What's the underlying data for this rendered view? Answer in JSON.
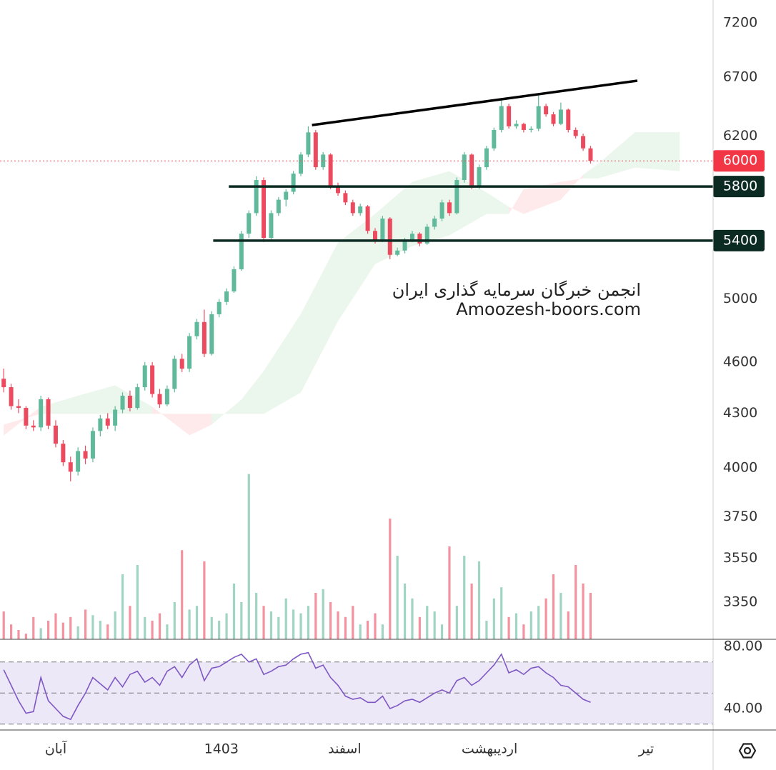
{
  "chart_data": {
    "type": "candlestick",
    "ylim": [
      3190,
      7420
    ],
    "log_scale": true,
    "yticks": [
      3350,
      3550,
      3750,
      4000,
      4300,
      4600,
      5000,
      6200,
      6700,
      7200
    ],
    "xlim": [
      -0.5,
      95.5
    ],
    "xticks": [
      {
        "value": 7,
        "label": "آبان"
      },
      {
        "value": 29.3,
        "label": "1403"
      },
      {
        "value": 45.9,
        "label": "اسفند"
      },
      {
        "value": 65.4,
        "label": "اردیبهشت"
      },
      {
        "value": 86.5,
        "label": "تیر"
      }
    ],
    "up_color": "#5fb99a",
    "down_color": "#ec4b5f",
    "ohlc": [
      [
        4500,
        4560,
        4420,
        4450
      ],
      [
        4450,
        4470,
        4320,
        4340
      ],
      [
        4340,
        4380,
        4300,
        4330
      ],
      [
        4330,
        4340,
        4210,
        4230
      ],
      [
        4230,
        4260,
        4200,
        4220
      ],
      [
        4220,
        4400,
        4200,
        4380
      ],
      [
        4380,
        4390,
        4210,
        4230
      ],
      [
        4230,
        4260,
        4110,
        4130
      ],
      [
        4130,
        4150,
        4010,
        4030
      ],
      [
        4030,
        4060,
        3930,
        3980
      ],
      [
        3980,
        4110,
        3960,
        4090
      ],
      [
        4090,
        4120,
        4020,
        4050
      ],
      [
        4050,
        4220,
        4030,
        4200
      ],
      [
        4200,
        4290,
        4170,
        4270
      ],
      [
        4270,
        4300,
        4210,
        4230
      ],
      [
        4230,
        4340,
        4200,
        4320
      ],
      [
        4320,
        4420,
        4300,
        4400
      ],
      [
        4400,
        4430,
        4310,
        4330
      ],
      [
        4330,
        4470,
        4320,
        4450
      ],
      [
        4450,
        4600,
        4430,
        4580
      ],
      [
        4580,
        4600,
        4390,
        4410
      ],
      [
        4410,
        4440,
        4330,
        4350
      ],
      [
        4350,
        4460,
        4340,
        4440
      ],
      [
        4440,
        4640,
        4420,
        4620
      ],
      [
        4620,
        4650,
        4540,
        4560
      ],
      [
        4560,
        4780,
        4540,
        4760
      ],
      [
        4760,
        4870,
        4740,
        4850
      ],
      [
        4850,
        4930,
        4630,
        4650
      ],
      [
        4650,
        4920,
        4640,
        4900
      ],
      [
        4900,
        5000,
        4880,
        4980
      ],
      [
        4980,
        5070,
        4960,
        5050
      ],
      [
        5050,
        5220,
        5040,
        5200
      ],
      [
        5200,
        5470,
        5190,
        5450
      ],
      [
        5450,
        5620,
        5420,
        5600
      ],
      [
        5600,
        5880,
        5580,
        5850
      ],
      [
        5850,
        5870,
        5390,
        5420
      ],
      [
        5420,
        5620,
        5400,
        5600
      ],
      [
        5600,
        5720,
        5580,
        5700
      ],
      [
        5700,
        5780,
        5650,
        5760
      ],
      [
        5760,
        5920,
        5740,
        5900
      ],
      [
        5900,
        6070,
        5880,
        6050
      ],
      [
        6050,
        6280,
        6030,
        6230
      ],
      [
        6230,
        6250,
        5930,
        5950
      ],
      [
        5950,
        6070,
        5930,
        6050
      ],
      [
        6050,
        6060,
        5780,
        5800
      ],
      [
        5800,
        5830,
        5730,
        5750
      ],
      [
        5750,
        5770,
        5660,
        5680
      ],
      [
        5680,
        5700,
        5580,
        5600
      ],
      [
        5600,
        5670,
        5580,
        5650
      ],
      [
        5650,
        5660,
        5450,
        5470
      ],
      [
        5470,
        5490,
        5380,
        5400
      ],
      [
        5400,
        5580,
        5390,
        5560
      ],
      [
        5560,
        5570,
        5270,
        5300
      ],
      [
        5300,
        5350,
        5290,
        5330
      ],
      [
        5330,
        5420,
        5310,
        5400
      ],
      [
        5400,
        5470,
        5390,
        5450
      ],
      [
        5450,
        5460,
        5360,
        5380
      ],
      [
        5380,
        5520,
        5370,
        5500
      ],
      [
        5500,
        5580,
        5480,
        5560
      ],
      [
        5560,
        5700,
        5540,
        5680
      ],
      [
        5680,
        5700,
        5580,
        5600
      ],
      [
        5600,
        5870,
        5590,
        5850
      ],
      [
        5850,
        6070,
        5830,
        6050
      ],
      [
        6050,
        6060,
        5780,
        5800
      ],
      [
        5800,
        5970,
        5780,
        5950
      ],
      [
        5950,
        6120,
        5930,
        6100
      ],
      [
        6100,
        6270,
        6080,
        6250
      ],
      [
        6250,
        6520,
        6230,
        6450
      ],
      [
        6450,
        6470,
        6260,
        6280
      ],
      [
        6280,
        6330,
        6260,
        6300
      ],
      [
        6300,
        6310,
        6230,
        6250
      ],
      [
        6250,
        6280,
        6230,
        6260
      ],
      [
        6260,
        6540,
        6240,
        6450
      ],
      [
        6450,
        6470,
        6360,
        6380
      ],
      [
        6380,
        6400,
        6280,
        6300
      ],
      [
        6300,
        6480,
        6290,
        6420
      ],
      [
        6420,
        6430,
        6230,
        6250
      ],
      [
        6250,
        6270,
        6180,
        6200
      ],
      [
        6200,
        6220,
        6080,
        6100
      ],
      [
        6100,
        6120,
        5980,
        6000
      ]
    ],
    "volume": [
      15,
      8,
      5,
      3,
      12,
      6,
      10,
      14,
      9,
      12,
      7,
      16,
      13,
      10,
      8,
      15,
      35,
      18,
      40,
      12,
      10,
      14,
      8,
      20,
      48,
      16,
      18,
      42,
      12,
      10,
      14,
      30,
      20,
      89,
      25,
      18,
      15,
      12,
      22,
      16,
      14,
      18,
      25,
      27,
      20,
      15,
      12,
      18,
      8,
      10,
      14,
      8,
      65,
      45,
      30,
      22,
      12,
      18,
      15,
      8,
      50,
      18,
      45,
      30,
      42,
      10,
      22,
      28,
      12,
      14,
      8,
      15,
      18,
      22,
      35,
      25,
      15,
      40,
      30,
      25
    ],
    "volume_ylim": [
      0,
      100
    ],
    "cloud": {
      "x": [
        0,
        5,
        10,
        15,
        20,
        25,
        28,
        32,
        35,
        40,
        45,
        50,
        55,
        60,
        65,
        68,
        70,
        75,
        78,
        80,
        85,
        91
      ],
      "span_a": [
        4176,
        4337,
        4400,
        4461,
        4337,
        4176,
        4236,
        4378,
        4546,
        4902,
        5386,
        5594,
        5836,
        5919,
        5755,
        5647,
        5594,
        5700,
        5891,
        5975,
        6232,
        6232
      ],
      "span_b": [
        4236,
        4296,
        4296,
        4296,
        4296,
        4296,
        4296,
        4296,
        4296,
        4419,
        4856,
        5236,
        5361,
        5438,
        5594,
        5594,
        5782,
        5836,
        5863,
        5863,
        5947,
        5919
      ]
    },
    "trendline": {
      "x": [
        41.5,
        85.3
      ],
      "y": [
        6290,
        6670
      ]
    },
    "levels": [
      {
        "value": 5800,
        "from": 30.3
      },
      {
        "value": 5400,
        "from": 28.2
      }
    ],
    "last_price": 6000,
    "rsi": [
      65,
      55,
      45,
      37,
      38,
      60,
      45,
      40,
      35,
      33,
      42,
      50,
      60,
      56,
      52,
      60,
      54,
      62,
      64,
      57,
      60,
      55,
      64,
      67,
      60,
      68,
      72,
      58,
      66,
      67,
      70,
      73,
      75,
      70,
      72,
      62,
      64,
      67,
      68,
      72,
      75,
      76,
      66,
      68,
      60,
      55,
      48,
      46,
      47,
      44,
      44,
      48,
      40,
      42,
      45,
      46,
      44,
      47,
      50,
      52,
      50,
      58,
      60,
      55,
      58,
      63,
      68,
      75,
      63,
      65,
      62,
      66,
      67,
      63,
      60,
      55,
      54,
      50,
      46,
      44
    ],
    "rsi_ylim": [
      26.2,
      83.7
    ],
    "rsi_yticks": [
      {
        "value": 80,
        "label": "80.00"
      },
      {
        "value": 40,
        "label": "40.00"
      }
    ],
    "rsi_band": [
      30,
      70
    ],
    "rsi_levels": [
      30,
      50,
      70
    ],
    "watermark": [
      "انجمن خبرگان سرمایه گذاری ایران",
      "Amoozesh-boors.com"
    ]
  }
}
